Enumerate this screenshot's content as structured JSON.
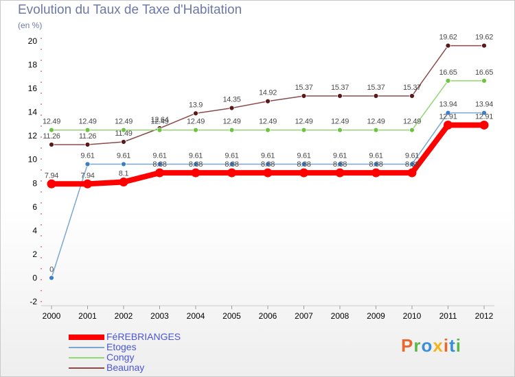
{
  "title": "Evolution du Taux de Taxe d'Habitation",
  "subtitle": "(en %)",
  "logo": {
    "text": "Proxiti",
    "colors": [
      "#e8672c",
      "#5ab84b",
      "#3a8fd6",
      "#f2b51c",
      "#e8672c",
      "#3a8fd6",
      "#5ab84b"
    ]
  },
  "chart_data": {
    "type": "line",
    "title": "Evolution du Taux de Taxe d'Habitation",
    "ylabel": "(en %)",
    "xlabel": "",
    "ylim": [
      -2,
      20
    ],
    "yticks": [
      -2,
      0,
      2,
      4,
      6,
      8,
      10,
      12,
      14,
      16,
      18,
      20
    ],
    "grid": false,
    "legend_position": "bottom-left",
    "x": [
      "2000",
      "2001",
      "2002",
      "2003",
      "2004",
      "2005",
      "2006",
      "2007",
      "2008",
      "2009",
      "2010",
      "2011",
      "2012"
    ],
    "series": [
      {
        "name": "FéREBRIANGES",
        "color": "#ff0000",
        "emphasis": "thick",
        "values": [
          7.94,
          7.94,
          8.1,
          8.88,
          8.88,
          8.88,
          8.88,
          8.88,
          8.88,
          8.88,
          8.88,
          12.91,
          12.91
        ],
        "labels": [
          "7.94",
          "7.94",
          "8.1",
          "8.88",
          "8.88",
          "8.88",
          "8.88",
          "8.88",
          "8.88",
          "8.88",
          "8.88",
          "12.91",
          "12.91"
        ]
      },
      {
        "name": "Etoges",
        "color": "#7aa6d2",
        "marker": "#3b7ec8",
        "values": [
          0,
          9.61,
          9.61,
          9.61,
          9.61,
          9.61,
          9.61,
          9.61,
          9.61,
          9.61,
          9.61,
          13.94,
          13.94
        ],
        "labels": [
          "0",
          "9.61",
          "9.61",
          "9.61",
          "9.61",
          "9.61",
          "9.61",
          "9.61",
          "9.61",
          "9.61",
          "9.61",
          "13.94",
          "13.94"
        ]
      },
      {
        "name": "Congy",
        "color": "#90d870",
        "marker": "#6cc440",
        "values": [
          12.49,
          12.49,
          12.49,
          12.49,
          12.49,
          12.49,
          12.49,
          12.49,
          12.49,
          12.49,
          12.49,
          16.65,
          16.65
        ],
        "labels": [
          "12.49",
          "12.49",
          "12.49",
          "12.49",
          "12.49",
          "12.49",
          "12.49",
          "12.49",
          "12.49",
          "12.49",
          "12.49",
          "16.65",
          "16.65"
        ]
      },
      {
        "name": "Beaunay",
        "color": "#8b4a4a",
        "marker": "#5a1818",
        "values": [
          11.26,
          11.26,
          11.49,
          12.64,
          13.9,
          14.35,
          14.92,
          15.37,
          15.37,
          15.37,
          15.37,
          19.62,
          19.62
        ],
        "labels": [
          "11.26",
          "11.26",
          "11.49",
          "12.64",
          "13.9",
          "14.35",
          "14.92",
          "15.37",
          "15.37",
          "15.37",
          "15.37",
          "19.62",
          "19.62"
        ]
      }
    ]
  }
}
